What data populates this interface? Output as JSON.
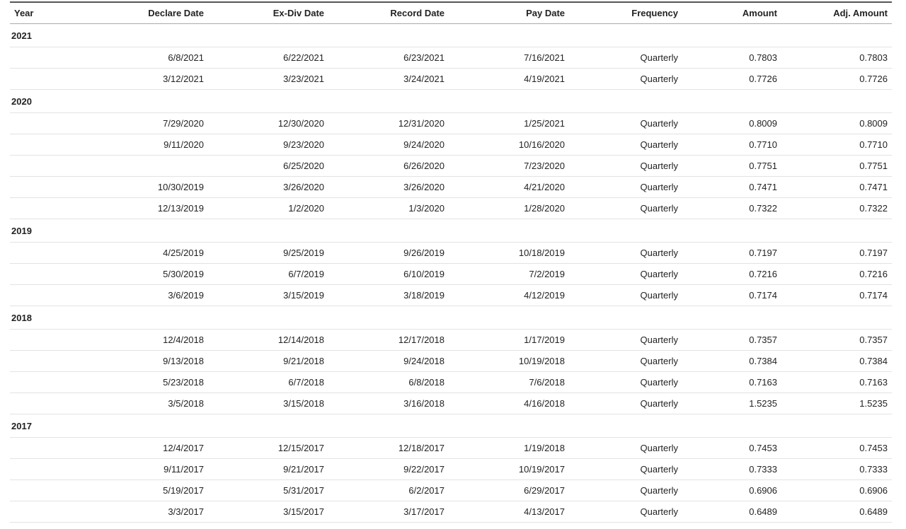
{
  "columns": {
    "year": "Year",
    "declare": "Declare Date",
    "exdiv": "Ex-Div Date",
    "record": "Record Date",
    "pay": "Pay Date",
    "freq": "Frequency",
    "amount": "Amount",
    "adj": "Adj. Amount"
  },
  "groups": [
    {
      "year": "2021",
      "rows": [
        {
          "declare": "6/8/2021",
          "exdiv": "6/22/2021",
          "record": "6/23/2021",
          "pay": "7/16/2021",
          "freq": "Quarterly",
          "amount": "0.7803",
          "adj": "0.7803"
        },
        {
          "declare": "3/12/2021",
          "exdiv": "3/23/2021",
          "record": "3/24/2021",
          "pay": "4/19/2021",
          "freq": "Quarterly",
          "amount": "0.7726",
          "adj": "0.7726"
        }
      ]
    },
    {
      "year": "2020",
      "rows": [
        {
          "declare": "7/29/2020",
          "exdiv": "12/30/2020",
          "record": "12/31/2020",
          "pay": "1/25/2021",
          "freq": "Quarterly",
          "amount": "0.8009",
          "adj": "0.8009"
        },
        {
          "declare": "9/11/2020",
          "exdiv": "9/23/2020",
          "record": "9/24/2020",
          "pay": "10/16/2020",
          "freq": "Quarterly",
          "amount": "0.7710",
          "adj": "0.7710"
        },
        {
          "declare": "",
          "exdiv": "6/25/2020",
          "record": "6/26/2020",
          "pay": "7/23/2020",
          "freq": "Quarterly",
          "amount": "0.7751",
          "adj": "0.7751"
        },
        {
          "declare": "10/30/2019",
          "exdiv": "3/26/2020",
          "record": "3/26/2020",
          "pay": "4/21/2020",
          "freq": "Quarterly",
          "amount": "0.7471",
          "adj": "0.7471"
        },
        {
          "declare": "12/13/2019",
          "exdiv": "1/2/2020",
          "record": "1/3/2020",
          "pay": "1/28/2020",
          "freq": "Quarterly",
          "amount": "0.7322",
          "adj": "0.7322"
        }
      ]
    },
    {
      "year": "2019",
      "rows": [
        {
          "declare": "4/25/2019",
          "exdiv": "9/25/2019",
          "record": "9/26/2019",
          "pay": "10/18/2019",
          "freq": "Quarterly",
          "amount": "0.7197",
          "adj": "0.7197"
        },
        {
          "declare": "5/30/2019",
          "exdiv": "6/7/2019",
          "record": "6/10/2019",
          "pay": "7/2/2019",
          "freq": "Quarterly",
          "amount": "0.7216",
          "adj": "0.7216"
        },
        {
          "declare": "3/6/2019",
          "exdiv": "3/15/2019",
          "record": "3/18/2019",
          "pay": "4/12/2019",
          "freq": "Quarterly",
          "amount": "0.7174",
          "adj": "0.7174"
        }
      ]
    },
    {
      "year": "2018",
      "rows": [
        {
          "declare": "12/4/2018",
          "exdiv": "12/14/2018",
          "record": "12/17/2018",
          "pay": "1/17/2019",
          "freq": "Quarterly",
          "amount": "0.7357",
          "adj": "0.7357"
        },
        {
          "declare": "9/13/2018",
          "exdiv": "9/21/2018",
          "record": "9/24/2018",
          "pay": "10/19/2018",
          "freq": "Quarterly",
          "amount": "0.7384",
          "adj": "0.7384"
        },
        {
          "declare": "5/23/2018",
          "exdiv": "6/7/2018",
          "record": "6/8/2018",
          "pay": "7/6/2018",
          "freq": "Quarterly",
          "amount": "0.7163",
          "adj": "0.7163"
        },
        {
          "declare": "3/5/2018",
          "exdiv": "3/15/2018",
          "record": "3/16/2018",
          "pay": "4/16/2018",
          "freq": "Quarterly",
          "amount": "1.5235",
          "adj": "1.5235"
        }
      ]
    },
    {
      "year": "2017",
      "rows": [
        {
          "declare": "12/4/2017",
          "exdiv": "12/15/2017",
          "record": "12/18/2017",
          "pay": "1/19/2018",
          "freq": "Quarterly",
          "amount": "0.7453",
          "adj": "0.7453"
        },
        {
          "declare": "9/11/2017",
          "exdiv": "9/21/2017",
          "record": "9/22/2017",
          "pay": "10/19/2017",
          "freq": "Quarterly",
          "amount": "0.7333",
          "adj": "0.7333"
        },
        {
          "declare": "5/19/2017",
          "exdiv": "5/31/2017",
          "record": "6/2/2017",
          "pay": "6/29/2017",
          "freq": "Quarterly",
          "amount": "0.6906",
          "adj": "0.6906"
        },
        {
          "declare": "3/3/2017",
          "exdiv": "3/15/2017",
          "record": "3/17/2017",
          "pay": "4/13/2017",
          "freq": "Quarterly",
          "amount": "0.6489",
          "adj": "0.6489"
        }
      ]
    }
  ]
}
